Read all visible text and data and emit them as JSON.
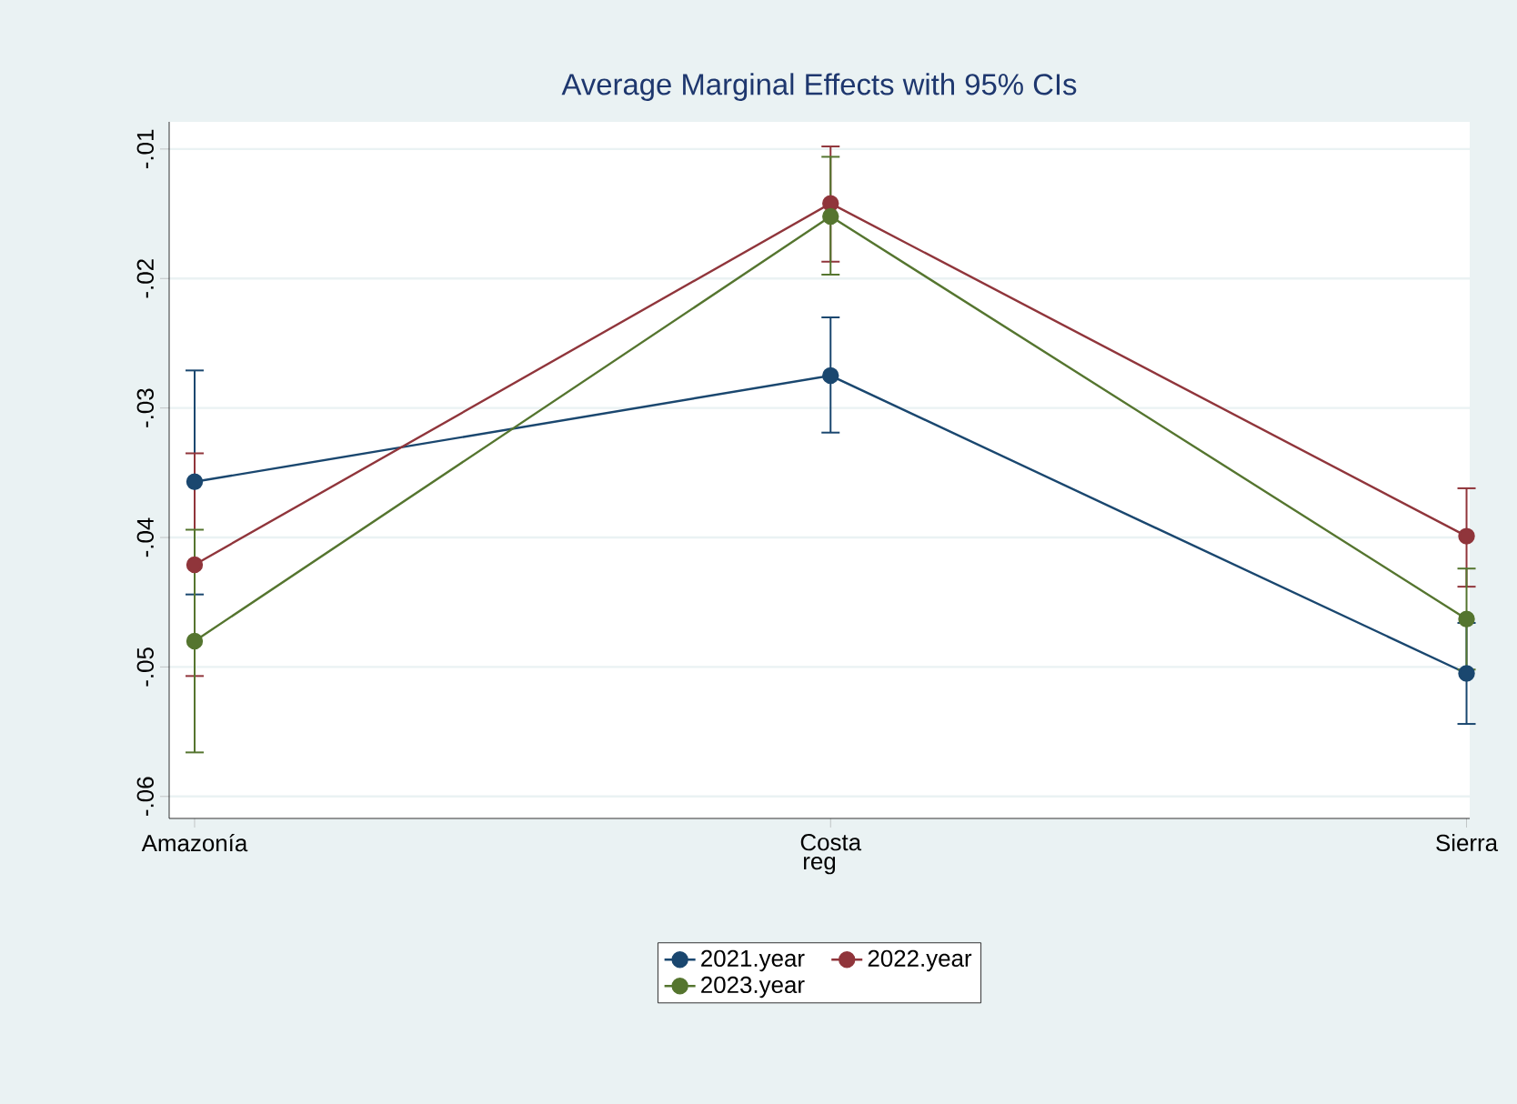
{
  "chart_data": {
    "type": "line",
    "title": "Average Marginal Effects with 95% CIs",
    "xlabel": "reg",
    "categories": [
      "Amazonía",
      "Costa",
      "Sierra"
    ],
    "series": [
      {
        "name": "2021.year",
        "color": "#1a476f",
        "values": [
          -0.0357,
          -0.0275,
          -0.0505
        ],
        "errors": [
          [
            -0.0444,
            -0.0271
          ],
          [
            -0.0319,
            -0.023
          ],
          [
            -0.0544,
            -0.0466
          ]
        ]
      },
      {
        "name": "2022.year",
        "color": "#90353b",
        "values": [
          -0.0421,
          -0.0142,
          -0.0399
        ],
        "errors": [
          [
            -0.0507,
            -0.0335
          ],
          [
            -0.0187,
            -0.0098
          ],
          [
            -0.0438,
            -0.0362
          ]
        ]
      },
      {
        "name": "2023.year",
        "color": "#55752f",
        "values": [
          -0.048,
          -0.0152,
          -0.0463
        ],
        "errors": [
          [
            -0.0566,
            -0.0394
          ],
          [
            -0.0197,
            -0.0106
          ],
          [
            -0.0502,
            -0.0424
          ]
        ]
      }
    ],
    "ylim": [
      -0.0617,
      -0.0079
    ],
    "yticks": [
      {
        "value": -0.06,
        "label": "-.06"
      },
      {
        "value": -0.05,
        "label": "-.05"
      },
      {
        "value": -0.04,
        "label": "-.04"
      },
      {
        "value": -0.03,
        "label": "-.03"
      },
      {
        "value": -0.02,
        "label": "-.02"
      },
      {
        "value": -0.01,
        "label": "-.01"
      }
    ],
    "grid": "y",
    "legend": "bottom",
    "marker": "circle",
    "line_style": "solid"
  }
}
